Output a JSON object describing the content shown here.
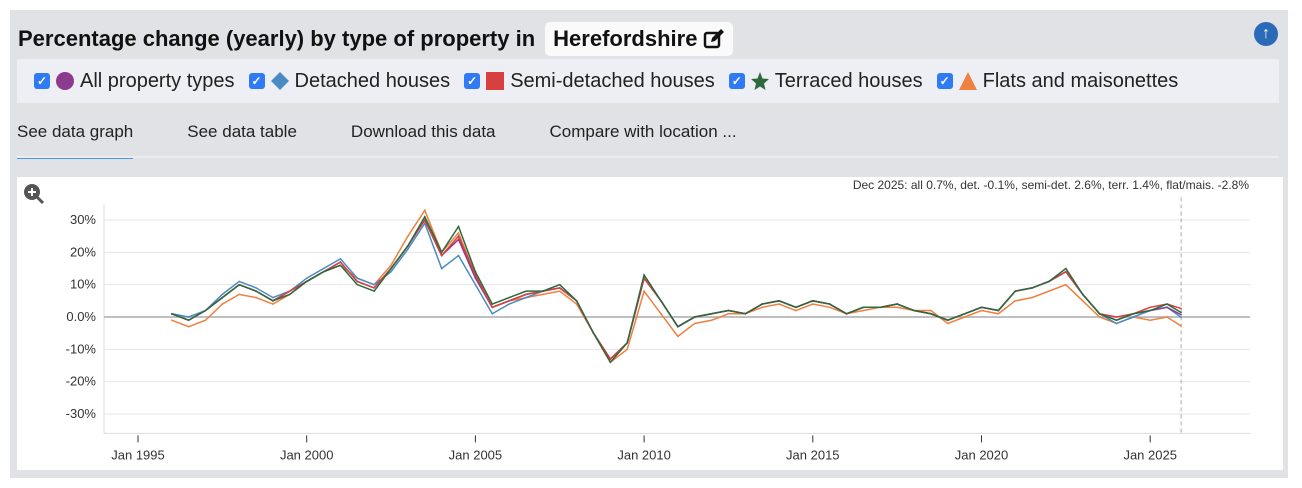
{
  "header": {
    "title": "Percentage change (yearly) by type of property in",
    "location": "Herefordshire",
    "edit_icon": "edit-icon",
    "top_icon": "arrow-up-circle-icon"
  },
  "legend": [
    {
      "label": "All property types",
      "color": "#8b3a8f",
      "marker": "circle",
      "checked": true
    },
    {
      "label": "Detached houses",
      "color": "#4a8bc4",
      "marker": "diamond",
      "checked": true
    },
    {
      "label": "Semi-detached houses",
      "color": "#d64040",
      "marker": "square",
      "checked": true
    },
    {
      "label": "Terraced houses",
      "color": "#2d6a3e",
      "marker": "star",
      "checked": true
    },
    {
      "label": "Flats and maisonettes",
      "color": "#ee8040",
      "marker": "triangle",
      "checked": true
    }
  ],
  "tabs": [
    {
      "label": "See data graph",
      "active": true
    },
    {
      "label": "See data table"
    },
    {
      "label": "Download this data"
    },
    {
      "label": "Compare with location ..."
    }
  ],
  "chart_data": {
    "type": "line",
    "annotation": "Dec 2025: all 0.7%, det. -0.1%, semi-det. 2.6%, terr. 1.4%, flat/mais. -2.8%",
    "zoom_icon": "zoom-in-icon",
    "ylim": [
      -35,
      35
    ],
    "yticks": [
      30,
      20,
      10,
      0,
      -10,
      -20,
      -30
    ],
    "ytick_labels": [
      "30%",
      "20%",
      "10%",
      "0.0%",
      "-10%",
      "-20%",
      "-30%"
    ],
    "xlim": [
      "1994-01",
      "2028-01"
    ],
    "xticks": [
      "1995-01",
      "2000-01",
      "2005-01",
      "2010-01",
      "2015-01",
      "2020-01",
      "2025-01"
    ],
    "xtick_labels": [
      "Jan 1995",
      "Jan 2000",
      "Jan 2005",
      "Jan 2010",
      "Jan 2015",
      "Jan 2020",
      "Jan 2025"
    ],
    "grid": true,
    "x": [
      "1996-01",
      "1996-07",
      "1997-01",
      "1997-07",
      "1998-01",
      "1998-07",
      "1999-01",
      "1999-07",
      "2000-01",
      "2000-07",
      "2001-01",
      "2001-07",
      "2002-01",
      "2002-07",
      "2003-01",
      "2003-07",
      "2004-01",
      "2004-07",
      "2005-01",
      "2005-07",
      "2006-01",
      "2006-07",
      "2007-01",
      "2007-07",
      "2008-01",
      "2008-07",
      "2009-01",
      "2009-07",
      "2010-01",
      "2010-07",
      "2011-01",
      "2011-07",
      "2012-01",
      "2012-07",
      "2013-01",
      "2013-07",
      "2014-01",
      "2014-07",
      "2015-01",
      "2015-07",
      "2016-01",
      "2016-07",
      "2017-01",
      "2017-07",
      "2018-01",
      "2018-07",
      "2019-01",
      "2019-07",
      "2020-01",
      "2020-07",
      "2021-01",
      "2021-07",
      "2022-01",
      "2022-07",
      "2023-01",
      "2023-07",
      "2024-01",
      "2024-07",
      "2025-01",
      "2025-07",
      "2025-12"
    ],
    "series": [
      {
        "name": "All property types",
        "values": [
          1,
          -1,
          2,
          6,
          10,
          8,
          5,
          8,
          11,
          14,
          17,
          11,
          9,
          15,
          22,
          30,
          19,
          24,
          12,
          3,
          5,
          7,
          8,
          9,
          5,
          -5,
          -13,
          -8,
          12,
          5,
          -3,
          0,
          1,
          2,
          1,
          4,
          5,
          3,
          5,
          4,
          1,
          3,
          3,
          4,
          2,
          1,
          -1,
          1,
          3,
          2,
          8,
          9,
          11,
          14,
          7,
          1,
          -1,
          1,
          2,
          3,
          0.7
        ]
      },
      {
        "name": "Detached houses",
        "values": [
          1,
          0,
          2,
          7,
          11,
          9,
          6,
          8,
          12,
          15,
          18,
          12,
          10,
          14,
          21,
          29,
          15,
          19,
          10,
          1,
          4,
          6,
          8,
          9,
          5,
          -5,
          -13,
          -8,
          12,
          5,
          -3,
          0,
          1,
          2,
          1,
          4,
          5,
          3,
          5,
          4,
          1,
          3,
          3,
          4,
          2,
          1,
          -1,
          1,
          3,
          2,
          8,
          9,
          11,
          14,
          7,
          1,
          -2,
          0,
          2,
          3,
          -0.1
        ]
      },
      {
        "name": "Semi-detached houses",
        "values": [
          1,
          -1,
          2,
          6,
          10,
          8,
          5,
          8,
          11,
          14,
          17,
          11,
          9,
          15,
          22,
          30,
          19,
          25,
          13,
          3,
          5,
          7,
          8,
          9,
          5,
          -5,
          -13,
          -8,
          12,
          5,
          -3,
          0,
          1,
          2,
          1,
          4,
          5,
          3,
          5,
          4,
          1,
          3,
          3,
          4,
          2,
          1,
          -1,
          1,
          3,
          2,
          8,
          9,
          11,
          14,
          7,
          1,
          0,
          1,
          3,
          4,
          2.6
        ]
      },
      {
        "name": "Terraced houses",
        "values": [
          1,
          -1,
          2,
          6,
          10,
          8,
          5,
          7,
          11,
          14,
          16,
          10,
          8,
          15,
          22,
          31,
          20,
          28,
          14,
          4,
          6,
          8,
          8,
          10,
          5,
          -5,
          -14,
          -8,
          13,
          5,
          -3,
          0,
          1,
          2,
          1,
          4,
          5,
          3,
          5,
          4,
          1,
          3,
          3,
          4,
          2,
          1,
          -1,
          1,
          3,
          2,
          8,
          9,
          11,
          15,
          7,
          1,
          -1,
          1,
          2,
          4,
          1.4
        ]
      },
      {
        "name": "Flats and maisonettes",
        "values": [
          -1,
          -3,
          -1,
          4,
          7,
          6,
          4,
          7,
          11,
          14,
          16,
          12,
          10,
          16,
          25,
          33,
          20,
          26,
          13,
          3,
          5,
          6,
          7,
          8,
          4,
          -5,
          -14,
          -10,
          8,
          1,
          -6,
          -2,
          -1,
          1,
          1,
          3,
          4,
          2,
          4,
          3,
          1,
          2,
          3,
          3,
          2,
          2,
          -2,
          0,
          2,
          1,
          5,
          6,
          8,
          10,
          5,
          0,
          -2,
          0,
          -1,
          0,
          -2.8
        ]
      }
    ]
  }
}
